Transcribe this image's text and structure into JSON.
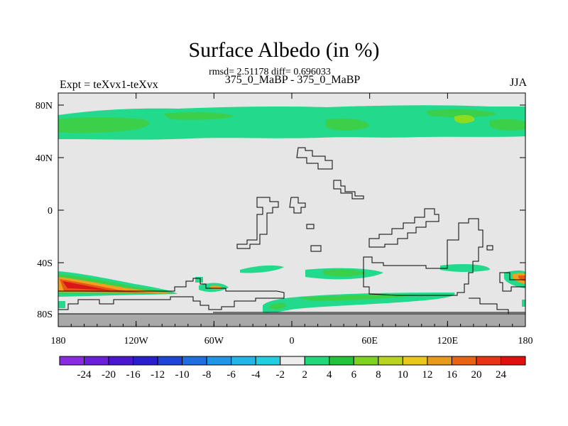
{
  "title": "Surface Albedo (in %)",
  "stats": "rmsd= 2.51178  diff= 0.696033",
  "subtitle_left": "Expt = teXvx1-teXvx",
  "subtitle_center": "375_0_MaBP - 375_0_MaBP",
  "subtitle_right": "JJA",
  "axes": {
    "lon_ticks": [
      "180",
      "120W",
      "60W",
      "0",
      "60E",
      "120E",
      "180"
    ],
    "lat_ticks": [
      "80N",
      "40N",
      "0",
      "40S",
      "80S"
    ]
  },
  "colorbar": {
    "labels": [
      "-24",
      "-20",
      "-16",
      "-12",
      "-10",
      "-8",
      "-6",
      "-4",
      "-2",
      "2",
      "4",
      "6",
      "8",
      "10",
      "12",
      "16",
      "20",
      "24"
    ],
    "colors": [
      "#8a2be2",
      "#6a1fd8",
      "#4b16cf",
      "#2a1fcf",
      "#1e44d8",
      "#1f6fe0",
      "#2196e6",
      "#22b5e8",
      "#22cfe0",
      "#ededed",
      "#22d87a",
      "#22c43a",
      "#7ed321",
      "#b8d321",
      "#e8c81c",
      "#e89a1c",
      "#e86414",
      "#e83414",
      "#e01010"
    ]
  },
  "legend_colors": {
    "band_low": "#22d98c",
    "band_mid": "#3ccf4a",
    "band_high": "#8fdc1e",
    "warm1": "#f0a020",
    "warm2": "#e85a14",
    "warm3": "#d81818",
    "neutral": "#e6e6e6",
    "missing": "#a8a8a8"
  }
}
